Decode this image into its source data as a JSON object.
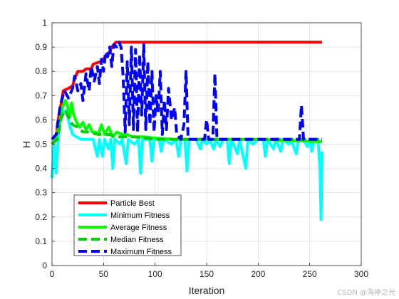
{
  "chart_data": {
    "type": "line",
    "xlabel": "Iteration",
    "ylabel": "H",
    "xlim": [
      0,
      300
    ],
    "ylim": [
      0,
      1
    ],
    "xticks": [
      0,
      50,
      100,
      150,
      200,
      250,
      300
    ],
    "yticks": [
      0,
      0.1,
      0.2,
      0.3,
      0.4,
      0.5,
      0.6,
      0.7,
      0.8,
      0.9,
      1
    ],
    "grid": true,
    "legend_position": "bottom-left",
    "series": [
      {
        "name": "Particle Best",
        "color": "#ff0000",
        "style": "solid",
        "points": [
          [
            0,
            0.5
          ],
          [
            4,
            0.52
          ],
          [
            6,
            0.6
          ],
          [
            9,
            0.67
          ],
          [
            11,
            0.72
          ],
          [
            16,
            0.73
          ],
          [
            20,
            0.74
          ],
          [
            22,
            0.77
          ],
          [
            25,
            0.8
          ],
          [
            30,
            0.8
          ],
          [
            33,
            0.81
          ],
          [
            38,
            0.81
          ],
          [
            40,
            0.83
          ],
          [
            47,
            0.84
          ],
          [
            50,
            0.85
          ],
          [
            53,
            0.87
          ],
          [
            56,
            0.88
          ],
          [
            58,
            0.9
          ],
          [
            60,
            0.91
          ],
          [
            62,
            0.92
          ],
          [
            262,
            0.92
          ]
        ]
      },
      {
        "name": "Minimum Fitness",
        "color": "#00ffff",
        "style": "solid",
        "points": [
          [
            0,
            0.36
          ],
          [
            2,
            0.5
          ],
          [
            4,
            0.38
          ],
          [
            6,
            0.52
          ],
          [
            8,
            0.6
          ],
          [
            11,
            0.63
          ],
          [
            14,
            0.64
          ],
          [
            17,
            0.58
          ],
          [
            20,
            0.54
          ],
          [
            24,
            0.53
          ],
          [
            28,
            0.52
          ],
          [
            35,
            0.52
          ],
          [
            40,
            0.52
          ],
          [
            44,
            0.45
          ],
          [
            46,
            0.52
          ],
          [
            49,
            0.45
          ],
          [
            51,
            0.52
          ],
          [
            55,
            0.48
          ],
          [
            57,
            0.52
          ],
          [
            59,
            0.4
          ],
          [
            61,
            0.52
          ],
          [
            66,
            0.5
          ],
          [
            68,
            0.52
          ],
          [
            72,
            0.42
          ],
          [
            74,
            0.52
          ],
          [
            80,
            0.5
          ],
          [
            84,
            0.52
          ],
          [
            86,
            0.38
          ],
          [
            88,
            0.52
          ],
          [
            95,
            0.52
          ],
          [
            97,
            0.43
          ],
          [
            99,
            0.52
          ],
          [
            104,
            0.52
          ],
          [
            106,
            0.47
          ],
          [
            108,
            0.52
          ],
          [
            116,
            0.5
          ],
          [
            120,
            0.52
          ],
          [
            123,
            0.45
          ],
          [
            125,
            0.52
          ],
          [
            129,
            0.52
          ],
          [
            131,
            0.39
          ],
          [
            133,
            0.52
          ],
          [
            140,
            0.52
          ],
          [
            144,
            0.48
          ],
          [
            146,
            0.52
          ],
          [
            150,
            0.5
          ],
          [
            153,
            0.52
          ],
          [
            157,
            0.48
          ],
          [
            159,
            0.52
          ],
          [
            163,
            0.49
          ],
          [
            166,
            0.52
          ],
          [
            170,
            0.52
          ],
          [
            172,
            0.42
          ],
          [
            174,
            0.52
          ],
          [
            180,
            0.46
          ],
          [
            182,
            0.52
          ],
          [
            188,
            0.4
          ],
          [
            190,
            0.52
          ],
          [
            195,
            0.5
          ],
          [
            200,
            0.52
          ],
          [
            205,
            0.52
          ],
          [
            207,
            0.45
          ],
          [
            209,
            0.52
          ],
          [
            215,
            0.48
          ],
          [
            217,
            0.52
          ],
          [
            222,
            0.47
          ],
          [
            224,
            0.52
          ],
          [
            230,
            0.5
          ],
          [
            232,
            0.52
          ],
          [
            237,
            0.46
          ],
          [
            239,
            0.52
          ],
          [
            245,
            0.51
          ],
          [
            248,
            0.49
          ],
          [
            250,
            0.52
          ],
          [
            252,
            0.47
          ],
          [
            254,
            0.52
          ],
          [
            258,
            0.52
          ],
          [
            260,
            0.4
          ],
          [
            261,
            0.19
          ],
          [
            262,
            0.47
          ]
        ]
      },
      {
        "name": "Average Fitness",
        "color": "#00ff00",
        "style": "solid",
        "points": [
          [
            0,
            0.5
          ],
          [
            4,
            0.52
          ],
          [
            7,
            0.58
          ],
          [
            10,
            0.65
          ],
          [
            13,
            0.68
          ],
          [
            15,
            0.66
          ],
          [
            17,
            0.61
          ],
          [
            19,
            0.67
          ],
          [
            21,
            0.62
          ],
          [
            24,
            0.59
          ],
          [
            27,
            0.57
          ],
          [
            30,
            0.59
          ],
          [
            33,
            0.56
          ],
          [
            36,
            0.58
          ],
          [
            39,
            0.55
          ],
          [
            42,
            0.55
          ],
          [
            45,
            0.54
          ],
          [
            48,
            0.58
          ],
          [
            51,
            0.54
          ],
          [
            55,
            0.57
          ],
          [
            59,
            0.53
          ],
          [
            63,
            0.55
          ],
          [
            68,
            0.54
          ],
          [
            73,
            0.54
          ],
          [
            78,
            0.53
          ],
          [
            84,
            0.53
          ],
          [
            90,
            0.53
          ],
          [
            100,
            0.525
          ],
          [
            120,
            0.52
          ],
          [
            150,
            0.52
          ],
          [
            200,
            0.52
          ],
          [
            262,
            0.51
          ]
        ]
      },
      {
        "name": "Median Fitness",
        "color": "#00cc00",
        "style": "dashed",
        "points": [
          [
            0,
            0.5
          ],
          [
            5,
            0.52
          ],
          [
            9,
            0.61
          ],
          [
            13,
            0.64
          ],
          [
            16,
            0.61
          ],
          [
            20,
            0.58
          ],
          [
            25,
            0.57
          ],
          [
            30,
            0.55
          ],
          [
            35,
            0.55
          ],
          [
            45,
            0.54
          ],
          [
            55,
            0.54
          ],
          [
            65,
            0.53
          ],
          [
            80,
            0.53
          ],
          [
            100,
            0.52
          ],
          [
            150,
            0.52
          ],
          [
            200,
            0.52
          ],
          [
            262,
            0.52
          ]
        ]
      },
      {
        "name": "Maximum Fitness",
        "color": "#0000ff",
        "style": "dashed",
        "points": [
          [
            0,
            0.52
          ],
          [
            4,
            0.54
          ],
          [
            8,
            0.66
          ],
          [
            12,
            0.72
          ],
          [
            16,
            0.69
          ],
          [
            20,
            0.73
          ],
          [
            22,
            0.78
          ],
          [
            25,
            0.72
          ],
          [
            28,
            0.75
          ],
          [
            30,
            0.68
          ],
          [
            33,
            0.79
          ],
          [
            36,
            0.72
          ],
          [
            38,
            0.82
          ],
          [
            41,
            0.76
          ],
          [
            44,
            0.82
          ],
          [
            46,
            0.75
          ],
          [
            48,
            0.85
          ],
          [
            50,
            0.8
          ],
          [
            52,
            0.88
          ],
          [
            54,
            0.86
          ],
          [
            56,
            0.9
          ],
          [
            58,
            0.82
          ],
          [
            60,
            0.91
          ],
          [
            63,
            0.9
          ],
          [
            65,
            0.92
          ],
          [
            67,
            0.9
          ],
          [
            69,
            0.78
          ],
          [
            71,
            0.55
          ],
          [
            73,
            0.84
          ],
          [
            75,
            0.58
          ],
          [
            77,
            0.9
          ],
          [
            79,
            0.56
          ],
          [
            81,
            0.89
          ],
          [
            83,
            0.55
          ],
          [
            85,
            0.87
          ],
          [
            87,
            0.62
          ],
          [
            89,
            0.91
          ],
          [
            91,
            0.56
          ],
          [
            93,
            0.84
          ],
          [
            95,
            0.58
          ],
          [
            97,
            0.8
          ],
          [
            99,
            0.55
          ],
          [
            101,
            0.7
          ],
          [
            103,
            0.63
          ],
          [
            105,
            0.8
          ],
          [
            107,
            0.54
          ],
          [
            109,
            0.68
          ],
          [
            111,
            0.56
          ],
          [
            113,
            0.73
          ],
          [
            116,
            0.6
          ],
          [
            119,
            0.65
          ],
          [
            121,
            0.54
          ],
          [
            125,
            0.52
          ],
          [
            128,
            0.58
          ],
          [
            130,
            0.8
          ],
          [
            132,
            0.52
          ],
          [
            140,
            0.52
          ],
          [
            148,
            0.52
          ],
          [
            150,
            0.6
          ],
          [
            152,
            0.52
          ],
          [
            156,
            0.52
          ],
          [
            158,
            0.79
          ],
          [
            160,
            0.52
          ],
          [
            200,
            0.52
          ],
          [
            240,
            0.52
          ],
          [
            242,
            0.66
          ],
          [
            244,
            0.52
          ],
          [
            262,
            0.52
          ]
        ]
      }
    ]
  },
  "watermark": "CSDN @海神之光"
}
